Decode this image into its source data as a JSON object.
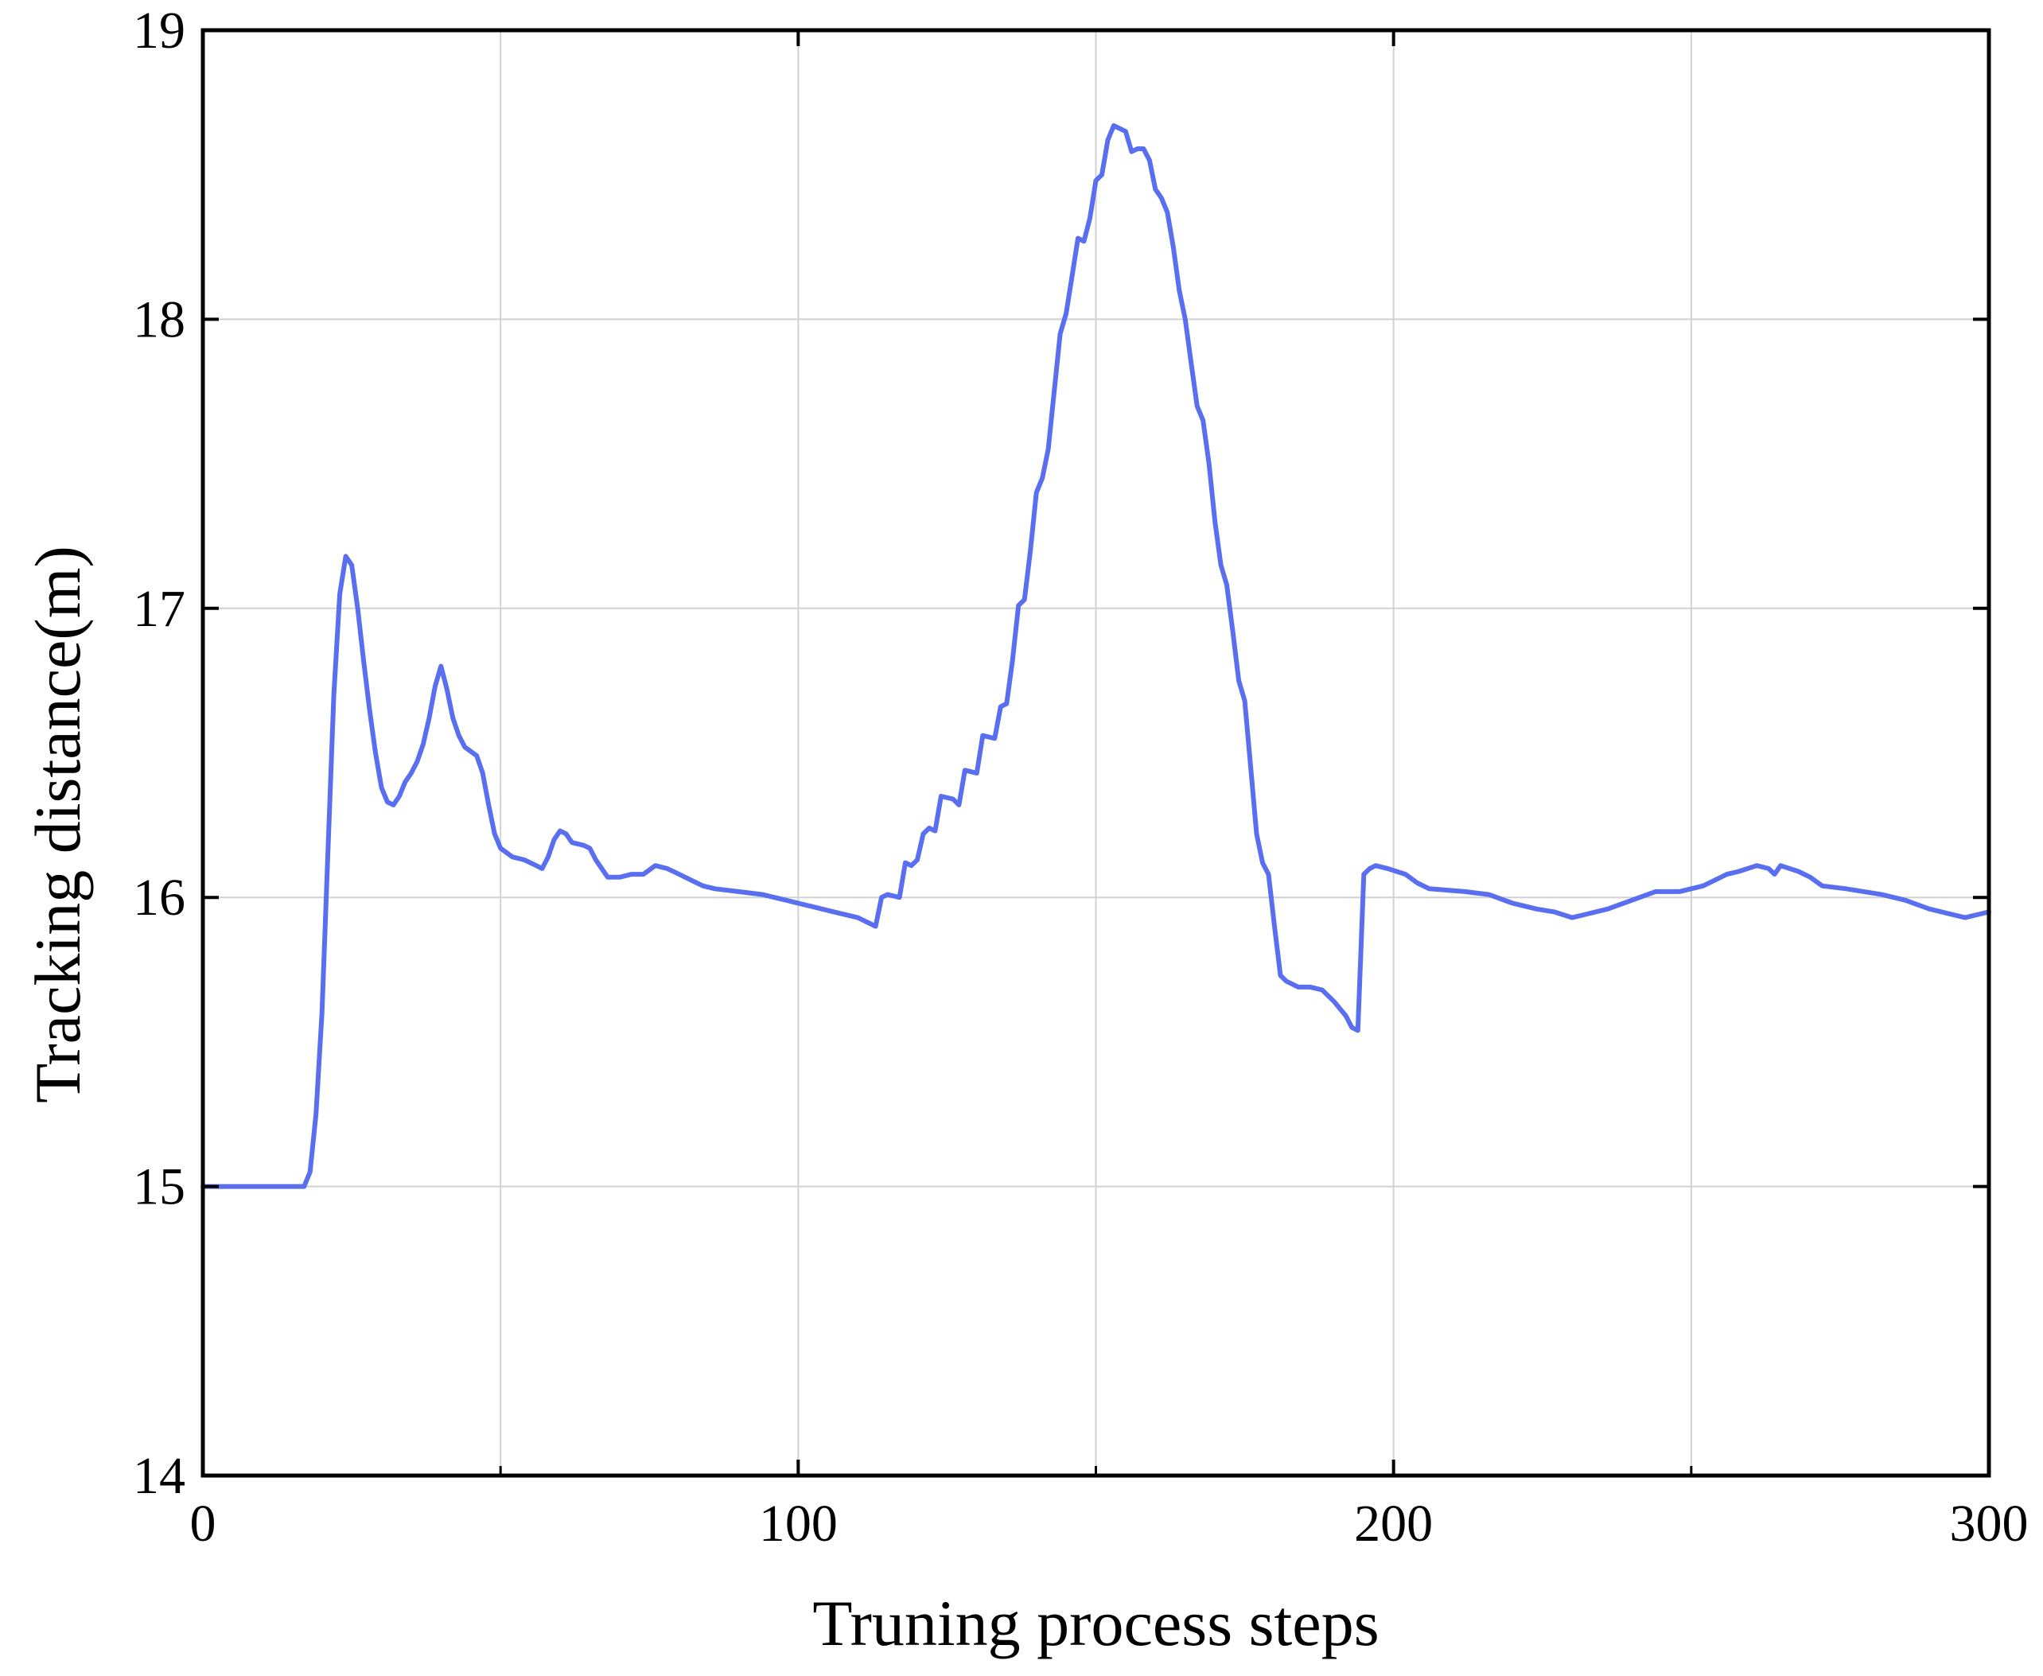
{
  "chart_data": {
    "type": "line",
    "title": "",
    "xlabel": "Truning process steps",
    "ylabel": "Tracking distance(m)",
    "xlim": [
      0,
      300
    ],
    "ylim": [
      14,
      19
    ],
    "xticks": [
      0,
      100,
      200,
      300
    ],
    "yticks": [
      14,
      15,
      16,
      17,
      18,
      19
    ],
    "x_minor_grid": [
      50,
      150,
      250
    ],
    "grid": true,
    "legend": "none",
    "line_color": "#5a6ef0",
    "series": [
      {
        "points": [
          [
            0,
            15.0
          ],
          [
            17,
            15.0
          ],
          [
            18,
            15.05
          ],
          [
            19,
            15.25
          ],
          [
            20,
            15.6
          ],
          [
            21,
            16.15
          ],
          [
            22,
            16.7
          ],
          [
            23,
            17.05
          ],
          [
            24,
            17.18
          ],
          [
            25,
            17.15
          ],
          [
            26,
            17.0
          ],
          [
            27,
            16.82
          ],
          [
            28,
            16.65
          ],
          [
            29,
            16.5
          ],
          [
            30,
            16.38
          ],
          [
            31,
            16.33
          ],
          [
            32,
            16.32
          ],
          [
            33,
            16.35
          ],
          [
            34,
            16.4
          ],
          [
            35,
            16.43
          ],
          [
            36,
            16.47
          ],
          [
            37,
            16.53
          ],
          [
            38,
            16.62
          ],
          [
            39,
            16.73
          ],
          [
            40,
            16.8
          ],
          [
            41,
            16.72
          ],
          [
            42,
            16.62
          ],
          [
            43,
            16.56
          ],
          [
            44,
            16.52
          ],
          [
            46,
            16.49
          ],
          [
            47,
            16.43
          ],
          [
            48,
            16.32
          ],
          [
            49,
            16.22
          ],
          [
            50,
            16.17
          ],
          [
            52,
            16.14
          ],
          [
            54,
            16.13
          ],
          [
            56,
            16.11
          ],
          [
            57,
            16.1
          ],
          [
            58,
            16.14
          ],
          [
            59,
            16.2
          ],
          [
            60,
            16.23
          ],
          [
            61,
            16.22
          ],
          [
            62,
            16.19
          ],
          [
            64,
            16.18
          ],
          [
            65,
            16.17
          ],
          [
            66,
            16.13
          ],
          [
            68,
            16.07
          ],
          [
            70,
            16.07
          ],
          [
            72,
            16.08
          ],
          [
            74,
            16.08
          ],
          [
            76,
            16.11
          ],
          [
            78,
            16.1
          ],
          [
            80,
            16.08
          ],
          [
            82,
            16.06
          ],
          [
            84,
            16.04
          ],
          [
            86,
            16.03
          ],
          [
            90,
            16.02
          ],
          [
            94,
            16.01
          ],
          [
            98,
            15.99
          ],
          [
            102,
            15.97
          ],
          [
            106,
            15.95
          ],
          [
            110,
            15.93
          ],
          [
            113,
            15.9
          ],
          [
            114,
            16.0
          ],
          [
            115,
            16.01
          ],
          [
            117,
            16.0
          ],
          [
            118,
            16.12
          ],
          [
            119,
            16.11
          ],
          [
            120,
            16.13
          ],
          [
            121,
            16.22
          ],
          [
            122,
            16.24
          ],
          [
            123,
            16.23
          ],
          [
            124,
            16.35
          ],
          [
            126,
            16.34
          ],
          [
            127,
            16.32
          ],
          [
            128,
            16.44
          ],
          [
            130,
            16.43
          ],
          [
            131,
            16.56
          ],
          [
            133,
            16.55
          ],
          [
            134,
            16.66
          ],
          [
            135,
            16.67
          ],
          [
            136,
            16.82
          ],
          [
            137,
            17.01
          ],
          [
            138,
            17.03
          ],
          [
            139,
            17.2
          ],
          [
            140,
            17.4
          ],
          [
            141,
            17.45
          ],
          [
            142,
            17.55
          ],
          [
            143,
            17.75
          ],
          [
            144,
            17.95
          ],
          [
            145,
            18.02
          ],
          [
            146,
            18.15
          ],
          [
            147,
            18.28
          ],
          [
            148,
            18.27
          ],
          [
            149,
            18.35
          ],
          [
            150,
            18.48
          ],
          [
            151,
            18.5
          ],
          [
            152,
            18.62
          ],
          [
            153,
            18.67
          ],
          [
            154,
            18.66
          ],
          [
            155,
            18.65
          ],
          [
            156,
            18.58
          ],
          [
            157,
            18.59
          ],
          [
            158,
            18.59
          ],
          [
            159,
            18.55
          ],
          [
            160,
            18.45
          ],
          [
            161,
            18.42
          ],
          [
            162,
            18.37
          ],
          [
            163,
            18.25
          ],
          [
            164,
            18.1
          ],
          [
            165,
            18.0
          ],
          [
            166,
            17.85
          ],
          [
            167,
            17.7
          ],
          [
            168,
            17.65
          ],
          [
            169,
            17.5
          ],
          [
            170,
            17.3
          ],
          [
            171,
            17.15
          ],
          [
            172,
            17.08
          ],
          [
            173,
            16.92
          ],
          [
            174,
            16.75
          ],
          [
            175,
            16.68
          ],
          [
            176,
            16.45
          ],
          [
            177,
            16.22
          ],
          [
            178,
            16.12
          ],
          [
            179,
            16.08
          ],
          [
            180,
            15.9
          ],
          [
            181,
            15.73
          ],
          [
            182,
            15.71
          ],
          [
            184,
            15.69
          ],
          [
            186,
            15.69
          ],
          [
            188,
            15.68
          ],
          [
            190,
            15.64
          ],
          [
            192,
            15.59
          ],
          [
            193,
            15.55
          ],
          [
            194,
            15.54
          ],
          [
            195,
            16.08
          ],
          [
            196,
            16.1
          ],
          [
            197,
            16.11
          ],
          [
            199,
            16.1
          ],
          [
            202,
            16.08
          ],
          [
            204,
            16.05
          ],
          [
            206,
            16.03
          ],
          [
            212,
            16.02
          ],
          [
            216,
            16.01
          ],
          [
            220,
            15.98
          ],
          [
            224,
            15.96
          ],
          [
            227,
            15.95
          ],
          [
            230,
            15.93
          ],
          [
            232,
            15.94
          ],
          [
            236,
            15.96
          ],
          [
            240,
            15.99
          ],
          [
            244,
            16.02
          ],
          [
            248,
            16.02
          ],
          [
            252,
            16.04
          ],
          [
            256,
            16.08
          ],
          [
            258,
            16.09
          ],
          [
            261,
            16.11
          ],
          [
            263,
            16.1
          ],
          [
            264,
            16.08
          ],
          [
            265,
            16.11
          ],
          [
            268,
            16.09
          ],
          [
            270,
            16.07
          ],
          [
            272,
            16.04
          ],
          [
            276,
            16.03
          ],
          [
            282,
            16.01
          ],
          [
            286,
            15.99
          ],
          [
            290,
            15.96
          ],
          [
            294,
            15.94
          ],
          [
            296,
            15.93
          ],
          [
            298,
            15.94
          ],
          [
            300,
            15.95
          ]
        ]
      }
    ]
  }
}
